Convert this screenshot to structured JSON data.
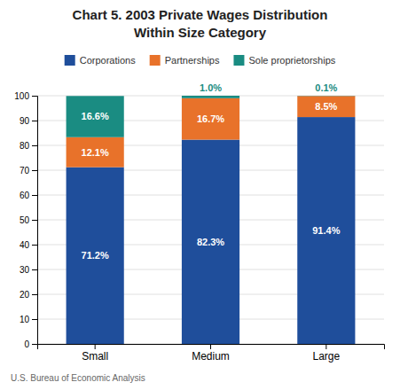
{
  "chart_data": {
    "type": "bar",
    "stacked": true,
    "title": "Chart 5. 2003 Private Wages Distribution",
    "subtitle": "Within Size Category",
    "categories": [
      "Small",
      "Medium",
      "Large"
    ],
    "series": [
      {
        "name": "Corporations",
        "color": "#1F4E9B",
        "values": [
          71.2,
          82.3,
          91.4
        ],
        "value_labels": [
          "71.2%",
          "82.3%",
          "91.4%"
        ]
      },
      {
        "name": "Partnerships",
        "color": "#E8722A",
        "values": [
          12.1,
          16.7,
          8.5
        ],
        "value_labels": [
          "12.1%",
          "16.7%",
          "8.5%"
        ]
      },
      {
        "name": "Sole proprietorships",
        "color": "#1A8C82",
        "values": [
          16.6,
          1.0,
          0.1
        ],
        "value_labels": [
          "16.6%",
          "1.0%",
          "0.1%"
        ]
      }
    ],
    "ylim": [
      0,
      100
    ],
    "yticks": [
      0,
      10,
      20,
      30,
      40,
      50,
      60,
      70,
      80,
      90,
      100
    ],
    "grid": true,
    "legend": "top",
    "data_labels": true,
    "annotations": [
      "U.S. Bureau of Economic Analysis"
    ]
  }
}
